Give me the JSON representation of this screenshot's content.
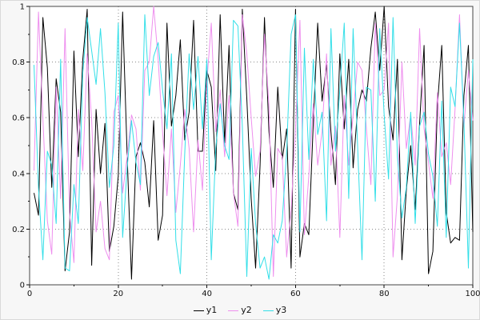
{
  "chart_data": {
    "type": "line",
    "title": "",
    "xlabel": "",
    "ylabel": "",
    "xlim": [
      0,
      100
    ],
    "ylim": [
      0,
      1
    ],
    "xticks": [
      0,
      20,
      40,
      60,
      80,
      100
    ],
    "yticks": [
      0,
      0.2,
      0.4,
      0.6,
      0.8,
      1
    ],
    "xticks_minor": [
      10,
      30,
      50,
      70,
      90
    ],
    "yticks_minor": [
      0.1,
      0.3,
      0.5,
      0.7,
      0.9
    ],
    "grid": "dotted",
    "grid_color": "#8a8a8a",
    "frame_color": "#444444",
    "plot_bg": "#ffffff",
    "figure_bg": "#f7f7f7",
    "legend_position": "bottom-center",
    "x": [
      1,
      2,
      3,
      4,
      5,
      6,
      7,
      8,
      9,
      10,
      11,
      12,
      13,
      14,
      15,
      16,
      17,
      18,
      19,
      20,
      21,
      22,
      23,
      24,
      25,
      26,
      27,
      28,
      29,
      30,
      31,
      32,
      33,
      34,
      35,
      36,
      37,
      38,
      39,
      40,
      41,
      42,
      43,
      44,
      45,
      46,
      47,
      48,
      49,
      50,
      51,
      52,
      53,
      54,
      55,
      56,
      57,
      58,
      59,
      60,
      61,
      62,
      63,
      64,
      65,
      66,
      67,
      68,
      69,
      70,
      71,
      72,
      73,
      74,
      75,
      76,
      77,
      78,
      79,
      80,
      81,
      82,
      83,
      84,
      85,
      86,
      87,
      88,
      89,
      90,
      91,
      92,
      93,
      94,
      95,
      96,
      97,
      98,
      99,
      100
    ],
    "series": [
      {
        "name": "y1",
        "color": "#000000",
        "values": [
          0.33,
          0.25,
          0.96,
          0.78,
          0.35,
          0.74,
          0.62,
          0.05,
          0.19,
          0.84,
          0.46,
          0.81,
          0.99,
          0.07,
          0.63,
          0.4,
          0.58,
          0.12,
          0.21,
          0.39,
          0.98,
          0.47,
          0.02,
          0.46,
          0.51,
          0.44,
          0.28,
          0.59,
          0.16,
          0.25,
          0.94,
          0.57,
          0.68,
          0.88,
          0.52,
          0.62,
          0.95,
          0.48,
          0.48,
          0.77,
          0.71,
          0.41,
          0.97,
          0.51,
          0.86,
          0.33,
          0.27,
          0.99,
          0.67,
          0.31,
          0.06,
          0.43,
          0.96,
          0.55,
          0.35,
          0.71,
          0.45,
          0.56,
          0.06,
          0.99,
          0.1,
          0.22,
          0.18,
          0.58,
          0.94,
          0.66,
          0.79,
          0.55,
          0.36,
          0.83,
          0.56,
          0.81,
          0.42,
          0.63,
          0.7,
          0.66,
          0.85,
          0.98,
          0.77,
          1.0,
          0.64,
          0.52,
          0.81,
          0.09,
          0.34,
          0.5,
          0.27,
          0.58,
          0.86,
          0.04,
          0.12,
          0.64,
          0.86,
          0.26,
          0.15,
          0.17,
          0.16,
          0.68,
          0.86,
          0.19
        ]
      },
      {
        "name": "y2",
        "color": "#ee8fee",
        "values": [
          0.41,
          0.98,
          0.6,
          0.23,
          0.11,
          0.71,
          0.31,
          0.92,
          0.26,
          0.08,
          0.63,
          0.41,
          0.83,
          0.59,
          0.19,
          0.3,
          0.13,
          0.09,
          0.62,
          0.68,
          0.33,
          0.46,
          0.61,
          0.56,
          0.34,
          0.77,
          0.8,
          1.0,
          0.81,
          0.55,
          0.32,
          0.56,
          0.26,
          0.43,
          0.63,
          0.49,
          0.19,
          0.52,
          0.34,
          0.73,
          0.94,
          0.55,
          0.7,
          0.46,
          0.68,
          0.33,
          0.21,
          0.97,
          0.83,
          0.6,
          0.39,
          0.48,
          0.9,
          0.64,
          0.03,
          0.49,
          0.46,
          0.1,
          0.27,
          0.56,
          0.95,
          0.18,
          0.39,
          0.65,
          0.43,
          0.55,
          0.83,
          0.43,
          0.57,
          0.17,
          0.68,
          0.43,
          0.61,
          0.8,
          0.77,
          0.56,
          0.36,
          0.94,
          0.68,
          0.7,
          0.94,
          0.1,
          0.32,
          0.8,
          0.49,
          0.61,
          0.43,
          0.92,
          0.56,
          0.44,
          0.31,
          0.69,
          0.46,
          0.51,
          0.36,
          0.63,
          0.97,
          0.57,
          0.77,
          0.59
        ]
      },
      {
        "name": "y3",
        "color": "#33dfe8",
        "values": [
          0.79,
          0.35,
          0.09,
          0.48,
          0.43,
          0.22,
          0.81,
          0.06,
          0.05,
          0.36,
          0.22,
          0.76,
          0.96,
          0.84,
          0.72,
          0.92,
          0.69,
          0.35,
          0.5,
          0.94,
          0.17,
          0.42,
          0.59,
          0.44,
          0.36,
          0.97,
          0.68,
          0.82,
          0.87,
          0.7,
          0.56,
          0.83,
          0.16,
          0.04,
          0.47,
          0.83,
          0.63,
          0.82,
          0.56,
          0.81,
          0.09,
          0.49,
          0.65,
          0.5,
          0.45,
          0.95,
          0.93,
          0.57,
          0.03,
          0.49,
          0.22,
          0.06,
          0.1,
          0.02,
          0.18,
          0.15,
          0.23,
          0.48,
          0.9,
          0.97,
          0.19,
          0.85,
          0.45,
          0.81,
          0.54,
          0.62,
          0.23,
          0.92,
          0.48,
          0.7,
          0.94,
          0.31,
          0.92,
          0.5,
          0.09,
          0.71,
          0.7,
          0.3,
          0.92,
          0.61,
          0.38,
          0.96,
          0.46,
          0.24,
          0.35,
          0.62,
          0.22,
          0.57,
          0.62,
          0.47,
          0.39,
          0.21,
          0.66,
          0.17,
          0.71,
          0.64,
          0.94,
          0.59,
          0.06,
          0.81
        ]
      }
    ]
  }
}
